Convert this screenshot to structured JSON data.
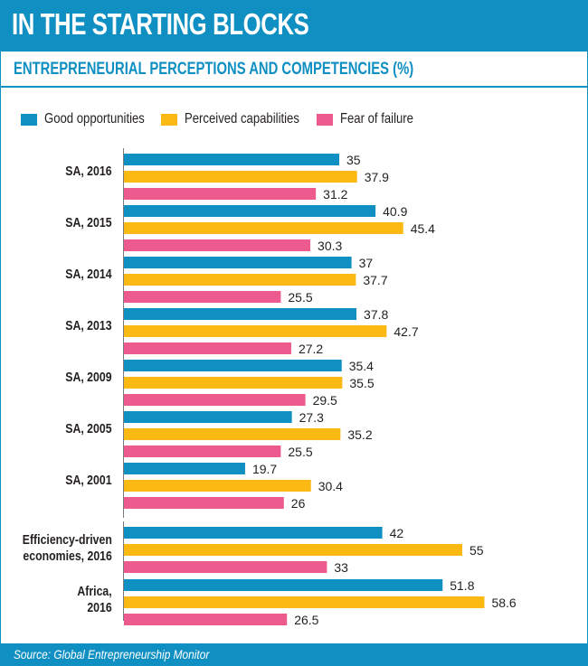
{
  "header": {
    "title": "IN THE STARTING BLOCKS",
    "subtitle": "ENTREPRENEURIAL PERCEPTIONS AND COMPETENCIES (%)"
  },
  "footer": {
    "source": "Source: Global Entrepreneurship Monitor"
  },
  "colors": {
    "brand": "#0f8fc2",
    "good": "#0f8fc2",
    "capabilities": "#fdb913",
    "fear": "#ec5a8e"
  },
  "chart_data": {
    "type": "bar",
    "orientation": "horizontal",
    "title": "ENTREPRENEURIAL PERCEPTIONS AND COMPETENCIES (%)",
    "xlabel": "",
    "ylabel": "",
    "legend_placement": "top",
    "grid": false,
    "xlim": [
      0,
      60
    ],
    "categories": [
      [
        "SA, 2016"
      ],
      [
        "SA, 2015"
      ],
      [
        "SA, 2014"
      ],
      [
        "SA, 2013"
      ],
      [
        "SA, 2009"
      ],
      [
        "SA, 2005"
      ],
      [
        "SA, 2001"
      ],
      [
        "Efficiency-driven",
        "economies, 2016"
      ],
      [
        "Africa,",
        "2016"
      ]
    ],
    "series": [
      {
        "name": "Good opportunities",
        "color": "#0f8fc2",
        "values": [
          35,
          40.9,
          37,
          37.8,
          35.4,
          27.3,
          19.7,
          42,
          51.8
        ]
      },
      {
        "name": "Perceived capabilities",
        "color": "#fdb913",
        "values": [
          37.9,
          45.4,
          37.7,
          42.7,
          35.5,
          35.2,
          30.4,
          55,
          58.6
        ]
      },
      {
        "name": "Fear of failure",
        "color": "#ec5a8e",
        "values": [
          31.2,
          30.3,
          25.5,
          27.2,
          29.5,
          25.5,
          26,
          33,
          26.5
        ]
      }
    ]
  }
}
